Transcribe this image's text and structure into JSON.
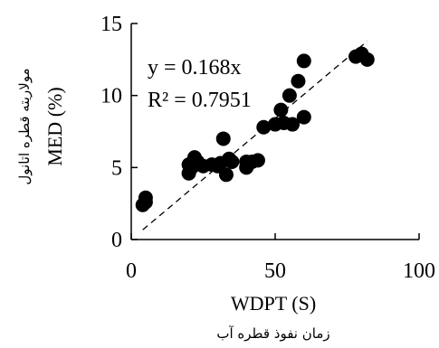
{
  "chart_data": {
    "type": "scatter",
    "title": "",
    "xlabel": "WDPT (S)",
    "xlabel_fa": "زمان نفوذ قطره آب",
    "ylabel": "MED (%)",
    "ylabel_fa": "مولاریته قطره اتانول",
    "xlim": [
      0,
      100
    ],
    "ylim": [
      0,
      15
    ],
    "xticks": [
      "0",
      "50",
      "100"
    ],
    "yticks": [
      "0",
      "5",
      "10",
      "15"
    ],
    "grid": false,
    "legend": "none",
    "marker_color": "#000000",
    "series": [
      {
        "x": [
          4,
          5,
          5,
          20,
          20,
          21,
          22,
          23,
          25,
          28,
          30,
          31,
          32,
          33,
          34,
          35,
          40,
          40,
          42,
          44,
          46,
          50,
          52,
          53,
          55,
          56,
          58,
          60,
          60,
          78,
          80,
          82
        ],
        "y": [
          2.4,
          2.6,
          2.9,
          4.6,
          5.2,
          5.0,
          5.7,
          5.4,
          5.1,
          5.2,
          5.1,
          5.3,
          7.0,
          4.5,
          5.6,
          5.4,
          5.0,
          5.4,
          5.4,
          5.5,
          7.8,
          8.0,
          9.0,
          8.1,
          10.0,
          8.0,
          11.0,
          8.5,
          12.4,
          12.7,
          12.9,
          12.5
        ]
      }
    ],
    "trendline": {
      "slope": 0.168,
      "x_start": 4,
      "x_end": 82,
      "style": "dashed"
    },
    "annotations": {
      "equation": "y = 0.168x",
      "r2": "R² = 0.7951"
    }
  }
}
